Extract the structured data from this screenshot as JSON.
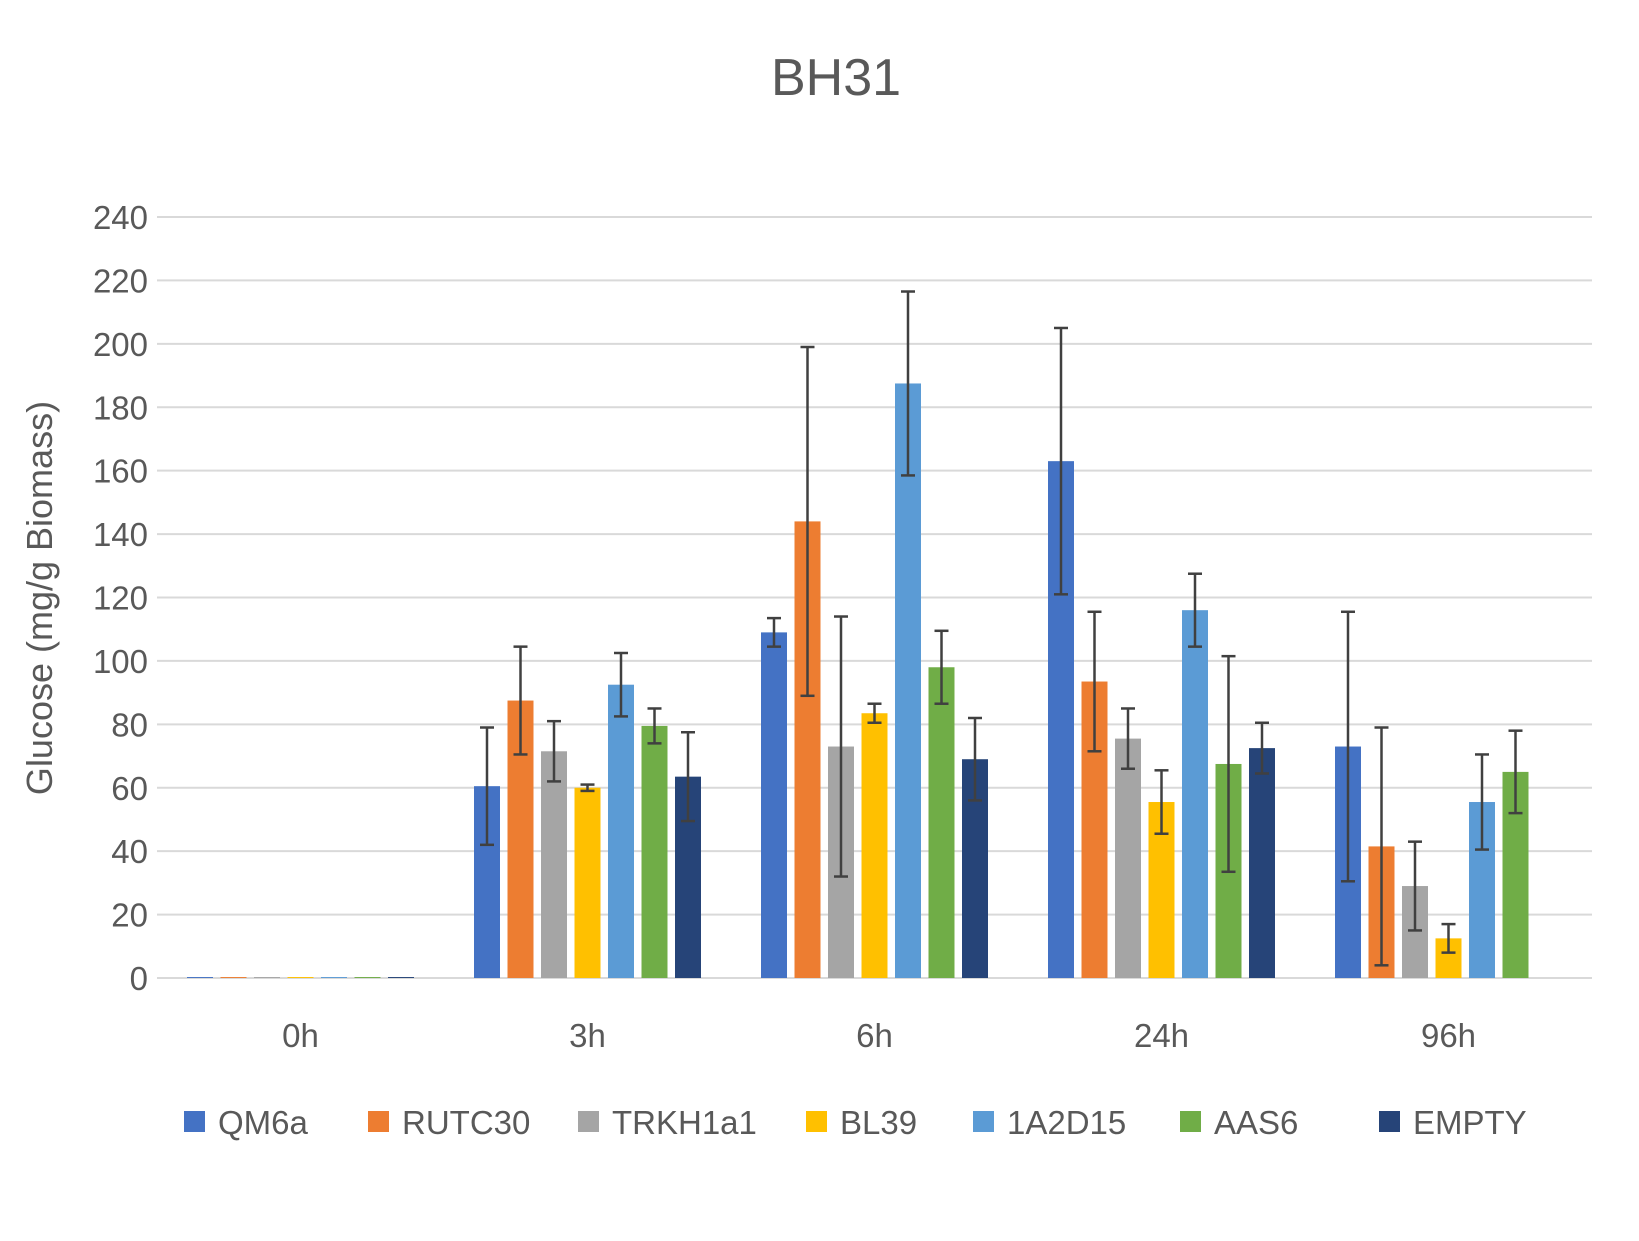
{
  "chart_data": {
    "type": "bar",
    "title": "BH31",
    "ylabel": "Glucose (mg/g Biomass)",
    "xlabel": "",
    "categories": [
      "0h",
      "3h",
      "6h",
      "24h",
      "96h"
    ],
    "ylim": [
      0,
      240
    ],
    "yticks": [
      0,
      20,
      40,
      60,
      80,
      100,
      120,
      140,
      160,
      180,
      200,
      220,
      240
    ],
    "grid": true,
    "legend_position": "bottom",
    "series": [
      {
        "name": "QM6a",
        "color": "#4472C4",
        "values": [
          0.3,
          60.5,
          109,
          163,
          73
        ],
        "errors": [
          0,
          18.5,
          4.5,
          42,
          42.5
        ]
      },
      {
        "name": "RUTC30",
        "color": "#ED7D31",
        "values": [
          0.3,
          87.5,
          144,
          93.5,
          41.5
        ],
        "errors": [
          0,
          17,
          55,
          22,
          37.5
        ]
      },
      {
        "name": "TRKH1a1",
        "color": "#A5A5A5",
        "values": [
          0.3,
          71.5,
          73,
          75.5,
          29
        ],
        "errors": [
          0,
          9.5,
          41,
          9.5,
          14
        ]
      },
      {
        "name": "BL39",
        "color": "#FFC000",
        "values": [
          0.3,
          60,
          83.5,
          55.5,
          12.5
        ],
        "errors": [
          0,
          1,
          3,
          10,
          4.5
        ]
      },
      {
        "name": "1A2D15",
        "color": "#5B9BD5",
        "values": [
          0.3,
          92.5,
          187.5,
          116,
          55.5
        ],
        "errors": [
          0,
          10,
          29,
          11.5,
          15
        ]
      },
      {
        "name": "AAS6",
        "color": "#70AD47",
        "values": [
          0.3,
          79.5,
          98,
          67.5,
          65
        ],
        "errors": [
          0,
          5.5,
          11.5,
          34,
          13
        ]
      },
      {
        "name": "EMPTY",
        "color": "#264478",
        "values": [
          0.3,
          63.5,
          69,
          72.5,
          null
        ],
        "errors": [
          0,
          14,
          13,
          8,
          0
        ]
      }
    ]
  }
}
